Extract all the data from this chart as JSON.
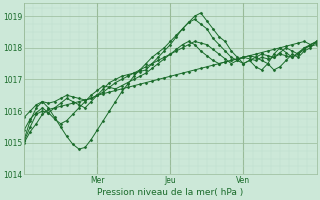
{
  "title": "",
  "xlabel": "Pression niveau de la mer( hPa )",
  "ylabel": "",
  "bg_color": "#cce8d8",
  "line_color": "#1a6b2a",
  "grid_major_color": "#99bb99",
  "grid_minor_color": "#bbddcc",
  "text_color": "#1a6b2a",
  "ylim": [
    1014.0,
    1019.4
  ],
  "yticks": [
    1014,
    1015,
    1016,
    1017,
    1018,
    1019
  ],
  "xtick_pos": [
    0,
    48,
    96,
    144,
    192
  ],
  "xtick_labels": [
    "",
    "Mer",
    "Jeu",
    "Ven",
    ""
  ],
  "n_points": 49,
  "series": [
    [
      1015.0,
      1015.35,
      1015.6,
      1015.9,
      1016.05,
      1016.1,
      1016.15,
      1016.2,
      1016.25,
      1016.3,
      1016.35,
      1016.4,
      1016.5,
      1016.55,
      1016.6,
      1016.65,
      1016.7,
      1016.75,
      1016.8,
      1016.85,
      1016.9,
      1016.95,
      1017.0,
      1017.05,
      1017.1,
      1017.15,
      1017.2,
      1017.25,
      1017.3,
      1017.35,
      1017.4,
      1017.45,
      1017.5,
      1017.55,
      1017.6,
      1017.65,
      1017.7,
      1017.75,
      1017.8,
      1017.85,
      1017.9,
      1017.95,
      1018.0,
      1018.05,
      1018.1,
      1018.15,
      1018.2,
      1018.1,
      1018.2
    ],
    [
      1015.05,
      1015.5,
      1015.9,
      1016.0,
      1015.95,
      1016.1,
      1016.25,
      1016.4,
      1016.3,
      1016.2,
      1016.1,
      1016.3,
      1016.5,
      1016.7,
      1016.9,
      1017.0,
      1017.1,
      1017.15,
      1017.2,
      1017.25,
      1017.3,
      1017.5,
      1017.7,
      1017.9,
      1018.1,
      1018.35,
      1018.6,
      1018.8,
      1019.0,
      1019.1,
      1018.85,
      1018.6,
      1018.35,
      1018.2,
      1017.9,
      1017.7,
      1017.5,
      1017.6,
      1017.4,
      1017.3,
      1017.5,
      1017.3,
      1017.4,
      1017.6,
      1017.8,
      1017.7,
      1017.9,
      1018.0,
      1018.2
    ],
    [
      1015.1,
      1015.7,
      1016.1,
      1016.3,
      1016.1,
      1015.8,
      1015.5,
      1015.2,
      1014.95,
      1014.8,
      1014.85,
      1015.1,
      1015.4,
      1015.7,
      1016.0,
      1016.3,
      1016.6,
      1016.85,
      1017.1,
      1017.3,
      1017.5,
      1017.7,
      1017.85,
      1018.0,
      1018.2,
      1018.4,
      1018.6,
      1018.8,
      1018.9,
      1018.75,
      1018.6,
      1018.3,
      1018.1,
      1017.9,
      1017.7,
      1017.6,
      1017.5,
      1017.6,
      1017.7,
      1017.6,
      1017.5,
      1017.8,
      1018.0,
      1017.85,
      1017.7,
      1017.8,
      1017.95,
      1018.1,
      1018.15
    ],
    [
      1015.8,
      1016.0,
      1016.2,
      1016.3,
      1016.25,
      1016.3,
      1016.4,
      1016.5,
      1016.45,
      1016.4,
      1016.35,
      1016.4,
      1016.5,
      1016.6,
      1016.75,
      1016.9,
      1017.0,
      1017.1,
      1017.2,
      1017.3,
      1017.4,
      1017.5,
      1017.6,
      1017.7,
      1017.8,
      1017.9,
      1018.0,
      1018.1,
      1018.2,
      1018.15,
      1018.1,
      1017.95,
      1017.8,
      1017.65,
      1017.5,
      1017.6,
      1017.7,
      1017.65,
      1017.6,
      1017.7,
      1017.65,
      1017.7,
      1017.8,
      1017.75,
      1017.7,
      1017.85,
      1018.0,
      1018.05,
      1018.1
    ],
    [
      1015.4,
      1015.75,
      1015.95,
      1016.1,
      1015.95,
      1015.75,
      1015.6,
      1015.7,
      1015.9,
      1016.1,
      1016.3,
      1016.5,
      1016.65,
      1016.8,
      1016.75,
      1016.7,
      1016.8,
      1016.9,
      1017.0,
      1017.1,
      1017.2,
      1017.35,
      1017.5,
      1017.65,
      1017.8,
      1017.95,
      1018.1,
      1018.2,
      1018.1,
      1017.9,
      1017.75,
      1017.6,
      1017.5,
      1017.55,
      1017.6,
      1017.65,
      1017.7,
      1017.75,
      1017.7,
      1017.8,
      1017.75,
      1017.7,
      1017.85,
      1018.0,
      1017.9,
      1017.8,
      1018.0,
      1018.1,
      1018.2
    ]
  ]
}
